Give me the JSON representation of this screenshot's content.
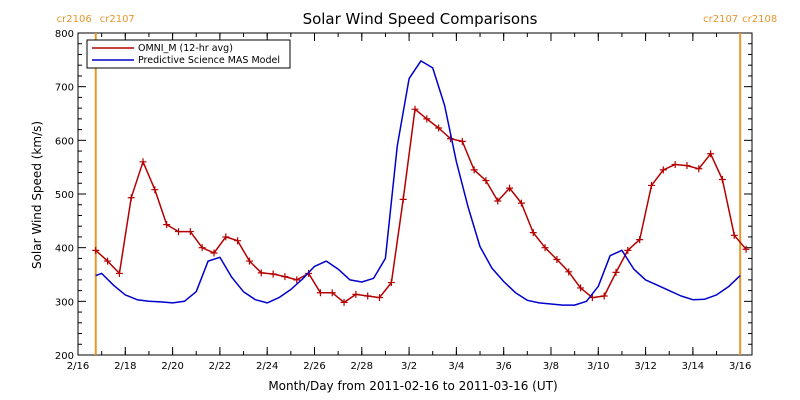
{
  "chart_data": {
    "type": "line",
    "title": "Solar Wind Speed Comparisons",
    "xlabel": "Month/Day from 2011-02-16 to 2011-03-16 (UT)",
    "ylabel": "Solar Wind Speed (km/s)",
    "xlim": [
      "2011-02-16",
      "2011-03-16T12:00"
    ],
    "ylim": [
      200,
      800
    ],
    "x_tick_labels": [
      "2/16",
      "2/18",
      "2/20",
      "2/22",
      "2/24",
      "2/26",
      "2/28",
      "3/2",
      "3/4",
      "3/6",
      "3/8",
      "3/10",
      "3/12",
      "3/14",
      "3/16"
    ],
    "x_tick_dates": [
      "2011-02-16",
      "2011-02-18",
      "2011-02-20",
      "2011-02-22",
      "2011-02-24",
      "2011-02-26",
      "2011-02-28",
      "2011-03-02",
      "2011-03-04",
      "2011-03-06",
      "2011-03-08",
      "2011-03-10",
      "2011-03-12",
      "2011-03-14",
      "2011-03-16"
    ],
    "y_ticks": [
      200,
      300,
      400,
      500,
      600,
      700,
      800
    ],
    "legend": {
      "placement": "top-left",
      "entries": [
        "OMNI_M (12-hr avg)",
        "Predictive Science MAS Model"
      ]
    },
    "carrington_markers": [
      {
        "x": "2011-02-16T18:00",
        "label_a": "cr2106",
        "label_b": "cr2107",
        "color": "#e8962c"
      },
      {
        "x": "2011-03-16T00:00",
        "label_a": "cr2107",
        "label_b": "cr2108",
        "color": "#e8962c"
      }
    ],
    "series": [
      {
        "name": "OMNI_M (12-hr avg)",
        "color": "#b40000",
        "marker": "plus",
        "x": [
          "2011-02-16T18:00",
          "2011-02-17T06:00",
          "2011-02-17T18:00",
          "2011-02-18T06:00",
          "2011-02-18T18:00",
          "2011-02-19T06:00",
          "2011-02-19T18:00",
          "2011-02-20T06:00",
          "2011-02-20T18:00",
          "2011-02-21T06:00",
          "2011-02-21T18:00",
          "2011-02-22T06:00",
          "2011-02-22T18:00",
          "2011-02-23T06:00",
          "2011-02-23T18:00",
          "2011-02-24T06:00",
          "2011-02-24T18:00",
          "2011-02-25T06:00",
          "2011-02-25T18:00",
          "2011-02-26T06:00",
          "2011-02-26T18:00",
          "2011-02-27T06:00",
          "2011-02-27T18:00",
          "2011-02-28T06:00",
          "2011-02-28T18:00",
          "2011-03-01T06:00",
          "2011-03-01T18:00",
          "2011-03-02T06:00",
          "2011-03-02T18:00",
          "2011-03-03T06:00",
          "2011-03-03T18:00",
          "2011-03-04T06:00",
          "2011-03-04T18:00",
          "2011-03-05T06:00",
          "2011-03-05T18:00",
          "2011-03-06T06:00",
          "2011-03-06T18:00",
          "2011-03-07T06:00",
          "2011-03-07T18:00",
          "2011-03-08T06:00",
          "2011-03-08T18:00",
          "2011-03-09T06:00",
          "2011-03-09T18:00",
          "2011-03-10T06:00",
          "2011-03-10T18:00",
          "2011-03-11T06:00",
          "2011-03-11T18:00",
          "2011-03-12T06:00",
          "2011-03-12T18:00",
          "2011-03-13T06:00",
          "2011-03-13T18:00",
          "2011-03-14T06:00",
          "2011-03-14T18:00",
          "2011-03-15T06:00",
          "2011-03-15T18:00",
          "2011-03-16T06:00"
        ],
        "values": [
          395,
          375,
          352,
          493,
          560,
          508,
          443,
          430,
          430,
          400,
          390,
          420,
          413,
          375,
          353,
          351,
          346,
          340,
          352,
          316,
          316,
          298,
          313,
          310,
          307,
          335,
          490,
          658,
          640,
          623,
          603,
          598,
          545,
          525,
          487,
          511,
          483,
          428,
          400,
          378,
          355,
          325,
          307,
          310,
          354,
          395,
          415,
          516,
          545,
          555,
          553,
          547,
          575,
          527,
          423,
          397
        ]
      },
      {
        "name": "Predictive Science MAS Model",
        "color": "#0000cc",
        "marker": "none",
        "x": [
          "2011-02-16T18:00",
          "2011-02-17T00:00",
          "2011-02-17T12:00",
          "2011-02-18T00:00",
          "2011-02-18T12:00",
          "2011-02-19T00:00",
          "2011-02-19T12:00",
          "2011-02-20T00:00",
          "2011-02-20T12:00",
          "2011-02-21T00:00",
          "2011-02-21T12:00",
          "2011-02-22T00:00",
          "2011-02-22T12:00",
          "2011-02-23T00:00",
          "2011-02-23T12:00",
          "2011-02-24T00:00",
          "2011-02-24T12:00",
          "2011-02-25T00:00",
          "2011-02-25T12:00",
          "2011-02-26T00:00",
          "2011-02-26T12:00",
          "2011-02-27T00:00",
          "2011-02-27T12:00",
          "2011-02-28T00:00",
          "2011-02-28T12:00",
          "2011-03-01T00:00",
          "2011-03-01T12:00",
          "2011-03-02T00:00",
          "2011-03-02T12:00",
          "2011-03-03T00:00",
          "2011-03-03T12:00",
          "2011-03-04T00:00",
          "2011-03-04T12:00",
          "2011-03-05T00:00",
          "2011-03-05T12:00",
          "2011-03-06T00:00",
          "2011-03-06T12:00",
          "2011-03-07T00:00",
          "2011-03-07T12:00",
          "2011-03-08T00:00",
          "2011-03-08T12:00",
          "2011-03-09T00:00",
          "2011-03-09T12:00",
          "2011-03-10T00:00",
          "2011-03-10T12:00",
          "2011-03-11T00:00",
          "2011-03-11T12:00",
          "2011-03-12T00:00",
          "2011-03-12T12:00",
          "2011-03-13T00:00",
          "2011-03-13T12:00",
          "2011-03-14T00:00",
          "2011-03-14T12:00",
          "2011-03-15T00:00",
          "2011-03-15T12:00",
          "2011-03-16T00:00"
        ],
        "values": [
          348,
          352,
          330,
          312,
          303,
          300,
          299,
          297,
          300,
          318,
          375,
          382,
          345,
          318,
          303,
          297,
          307,
          322,
          342,
          365,
          375,
          360,
          340,
          336,
          343,
          380,
          590,
          715,
          748,
          735,
          665,
          560,
          475,
          402,
          362,
          337,
          316,
          302,
          297,
          295,
          293,
          293,
          300,
          328,
          385,
          395,
          360,
          340,
          330,
          320,
          310,
          303,
          304,
          312,
          327,
          348
        ]
      }
    ]
  }
}
